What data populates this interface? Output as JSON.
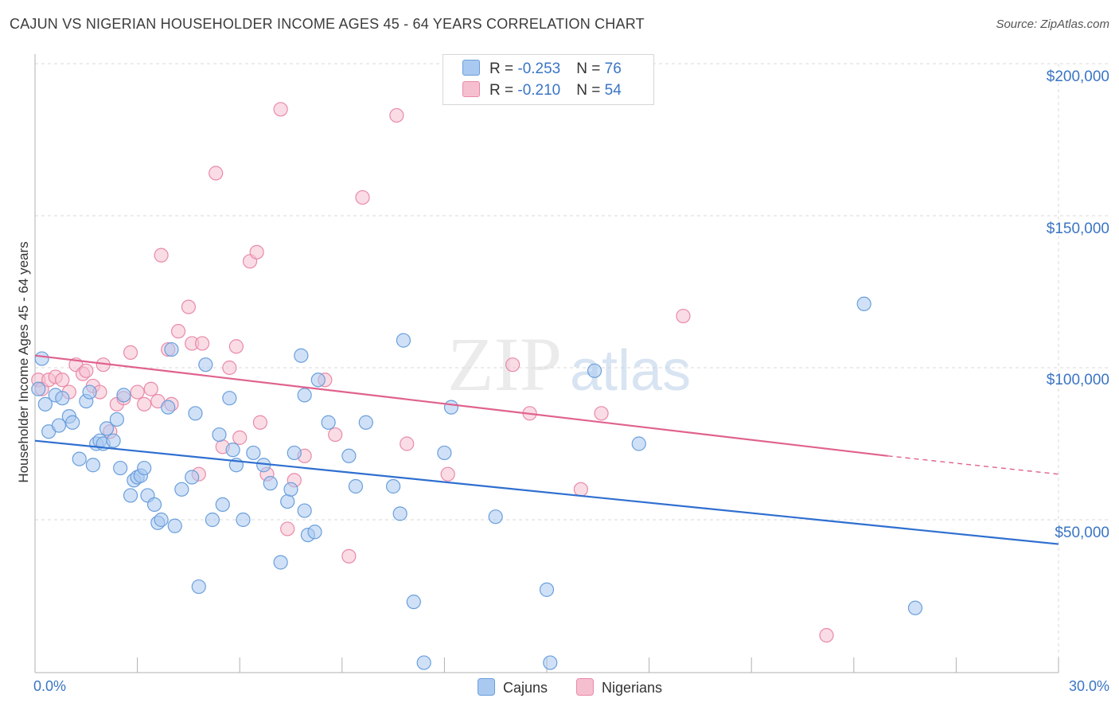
{
  "title": "CAJUN VS NIGERIAN HOUSEHOLDER INCOME AGES 45 - 64 YEARS CORRELATION CHART",
  "source": "Source: ZipAtlas.com",
  "watermark": {
    "zip": "ZIP",
    "atlas": "atlas"
  },
  "legend": {
    "cajun": {
      "r_label": "R = ",
      "r": "-0.253",
      "n_label": "N = ",
      "n": "76"
    },
    "nigerian": {
      "r_label": "R = ",
      "r": "-0.210",
      "n_label": "N = ",
      "n": "54"
    }
  },
  "colors": {
    "cajun_fill": "#aac9f0",
    "cajun_stroke": "#6a9fdc",
    "cajun_line": "#2f6fd0",
    "nigerian_fill": "#f6bfd0",
    "nigerian_stroke": "#e98aa8",
    "nigerian_line": "#e0628e",
    "axis_text": "#3a75c4",
    "grid": "#d8d8d8"
  },
  "chart_data": {
    "type": "scatter",
    "ylabel": "Householder Income Ages 45 - 64 years",
    "x_tick_labels": [
      "0.0%",
      "30.0%"
    ],
    "y_tick_labels": [
      "$50,000",
      "$100,000",
      "$150,000",
      "$200,000"
    ],
    "y_ticks": [
      50000,
      100000,
      150000,
      200000
    ],
    "xlim": [
      0,
      30
    ],
    "ylim": [
      0,
      210000
    ],
    "grid": true,
    "series": [
      {
        "name": "Cajuns",
        "trend": {
          "x0": 0,
          "y0": 76000,
          "x1": 30,
          "y1": 42000
        },
        "points": [
          [
            0.2,
            103000
          ],
          [
            0.3,
            88000
          ],
          [
            0.4,
            79000
          ],
          [
            0.6,
            91000
          ],
          [
            0.7,
            81000
          ],
          [
            0.8,
            90000
          ],
          [
            1.0,
            84000
          ],
          [
            1.1,
            82000
          ],
          [
            1.3,
            70000
          ],
          [
            1.5,
            89000
          ],
          [
            1.6,
            92000
          ],
          [
            1.7,
            68000
          ],
          [
            1.8,
            75000
          ],
          [
            1.9,
            76000
          ],
          [
            2.0,
            75000
          ],
          [
            2.1,
            80000
          ],
          [
            2.3,
            76000
          ],
          [
            2.4,
            83000
          ],
          [
            2.5,
            67000
          ],
          [
            2.6,
            91000
          ],
          [
            2.8,
            58000
          ],
          [
            2.9,
            63000
          ],
          [
            3.0,
            64000
          ],
          [
            3.1,
            64500
          ],
          [
            3.2,
            67000
          ],
          [
            3.3,
            58000
          ],
          [
            3.5,
            55000
          ],
          [
            3.6,
            49000
          ],
          [
            3.7,
            50000
          ],
          [
            3.9,
            87000
          ],
          [
            4.0,
            106000
          ],
          [
            4.1,
            48000
          ],
          [
            4.3,
            60000
          ],
          [
            4.6,
            64000
          ],
          [
            4.7,
            85000
          ],
          [
            4.8,
            28000
          ],
          [
            5.0,
            101000
          ],
          [
            5.2,
            50000
          ],
          [
            5.4,
            78000
          ],
          [
            5.5,
            55000
          ],
          [
            5.7,
            90000
          ],
          [
            5.8,
            73000
          ],
          [
            5.9,
            68000
          ],
          [
            6.1,
            50000
          ],
          [
            6.4,
            72000
          ],
          [
            6.7,
            68000
          ],
          [
            6.9,
            62000
          ],
          [
            7.2,
            36000
          ],
          [
            7.4,
            56000
          ],
          [
            7.5,
            60000
          ],
          [
            7.6,
            72000
          ],
          [
            7.9,
            53000
          ],
          [
            8.0,
            45000
          ],
          [
            8.2,
            46000
          ],
          [
            7.8,
            104000
          ],
          [
            7.9,
            91000
          ],
          [
            8.3,
            96000
          ],
          [
            8.6,
            82000
          ],
          [
            9.2,
            71000
          ],
          [
            9.4,
            61000
          ],
          [
            9.7,
            82000
          ],
          [
            10.5,
            61000
          ],
          [
            10.7,
            52000
          ],
          [
            10.8,
            109000
          ],
          [
            11.1,
            23000
          ],
          [
            11.4,
            3000
          ],
          [
            12.0,
            72000
          ],
          [
            12.2,
            87000
          ],
          [
            13.5,
            51000
          ],
          [
            15.0,
            27000
          ],
          [
            15.1,
            3000
          ],
          [
            16.4,
            99000
          ],
          [
            17.7,
            75000
          ],
          [
            24.3,
            121000
          ],
          [
            25.8,
            21000
          ],
          [
            0.1,
            93000
          ]
        ]
      },
      {
        "name": "Nigerians",
        "trend": {
          "x0": 0,
          "y0": 104000,
          "x1": 25,
          "y1": 71000,
          "dash_to_x": 30,
          "dash_to_y": 65000
        },
        "points": [
          [
            0.1,
            96000
          ],
          [
            0.2,
            93000
          ],
          [
            0.4,
            96000
          ],
          [
            0.6,
            97000
          ],
          [
            0.8,
            96000
          ],
          [
            1.0,
            92000
          ],
          [
            1.2,
            101000
          ],
          [
            1.4,
            98000
          ],
          [
            1.5,
            99000
          ],
          [
            1.7,
            94000
          ],
          [
            1.9,
            92000
          ],
          [
            2.0,
            101000
          ],
          [
            2.2,
            79000
          ],
          [
            2.4,
            88000
          ],
          [
            2.6,
            90000
          ],
          [
            2.8,
            105000
          ],
          [
            3.0,
            92000
          ],
          [
            3.2,
            88000
          ],
          [
            3.4,
            93000
          ],
          [
            3.6,
            89000
          ],
          [
            3.7,
            137000
          ],
          [
            3.9,
            106000
          ],
          [
            4.0,
            88000
          ],
          [
            4.2,
            112000
          ],
          [
            4.5,
            120000
          ],
          [
            4.6,
            108000
          ],
          [
            4.8,
            65000
          ],
          [
            4.9,
            108000
          ],
          [
            5.3,
            164000
          ],
          [
            5.5,
            74000
          ],
          [
            5.7,
            100000
          ],
          [
            5.9,
            107000
          ],
          [
            6.0,
            77000
          ],
          [
            6.3,
            135000
          ],
          [
            6.5,
            138000
          ],
          [
            6.6,
            82000
          ],
          [
            6.8,
            65000
          ],
          [
            7.2,
            185000
          ],
          [
            7.4,
            47000
          ],
          [
            7.6,
            63000
          ],
          [
            7.9,
            71000
          ],
          [
            8.5,
            96000
          ],
          [
            8.8,
            78000
          ],
          [
            9.2,
            38000
          ],
          [
            9.6,
            156000
          ],
          [
            10.6,
            183000
          ],
          [
            10.9,
            75000
          ],
          [
            12.1,
            65000
          ],
          [
            14.0,
            101000
          ],
          [
            14.5,
            85000
          ],
          [
            16.0,
            60000
          ],
          [
            16.6,
            85000
          ],
          [
            19.0,
            117000
          ],
          [
            23.2,
            12000
          ]
        ]
      }
    ]
  },
  "bottom_legend": {
    "cajuns": "Cajuns",
    "nigerians": "Nigerians"
  }
}
